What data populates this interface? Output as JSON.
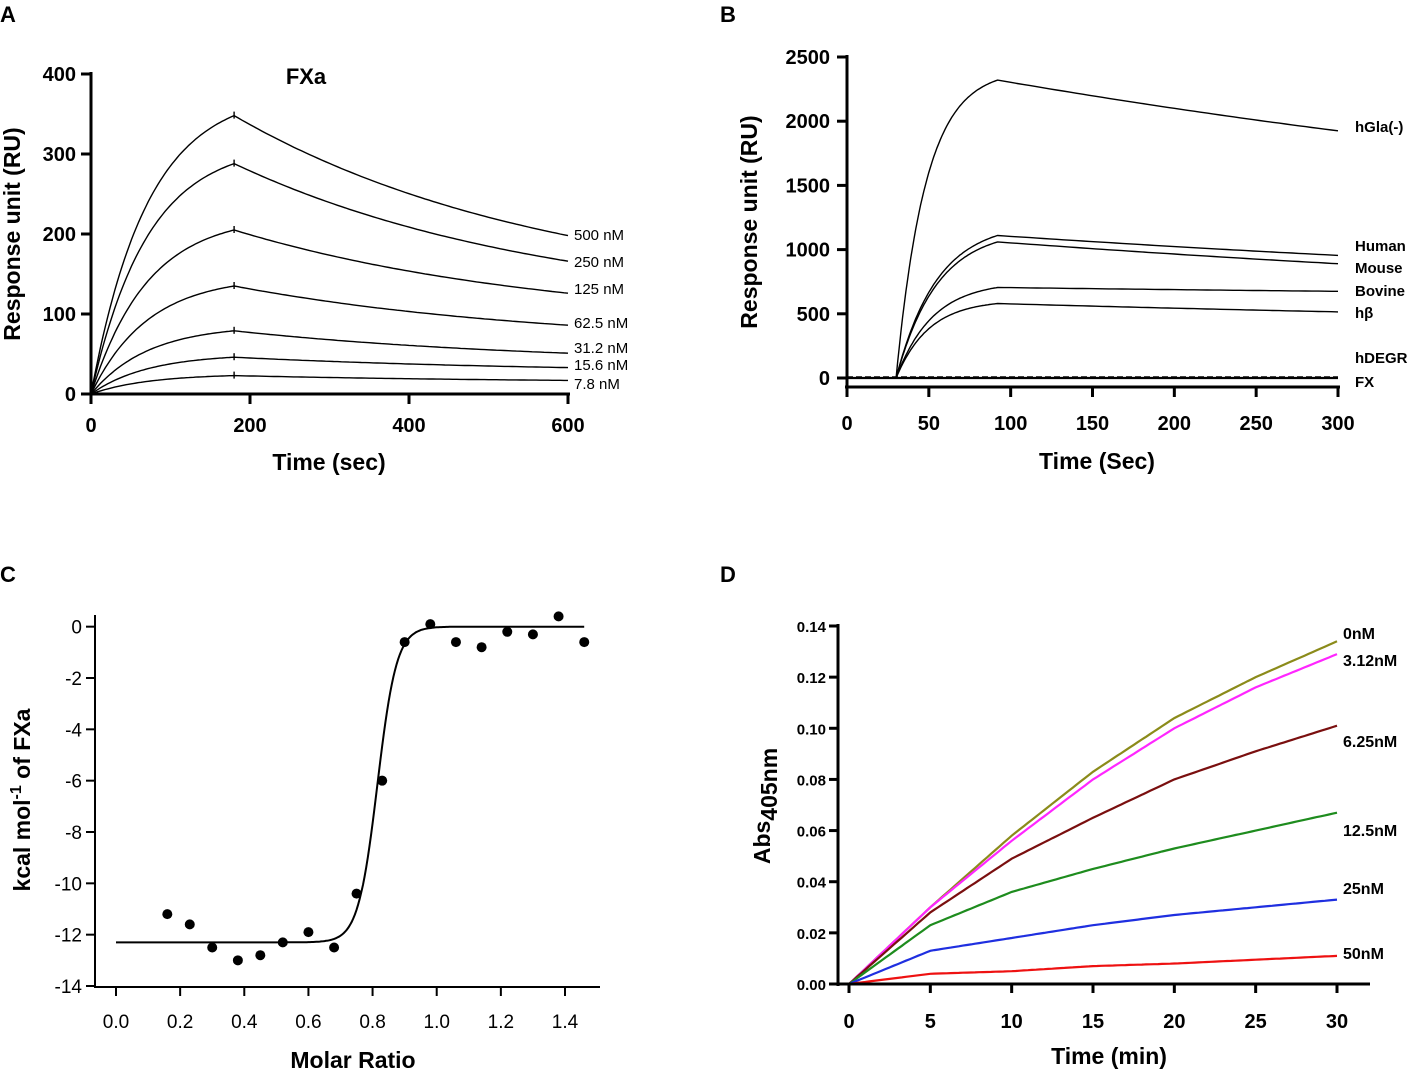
{
  "chart_data": [
    {
      "panel": "A",
      "type": "line",
      "title": "FXa",
      "xlabel": "Time (sec)",
      "ylabel": "Response unit (RU)",
      "xlim": [
        0,
        600
      ],
      "ylim": [
        0,
        400
      ],
      "xticks": [
        0,
        200,
        400,
        600
      ],
      "yticks": [
        0,
        100,
        200,
        300,
        400
      ],
      "association_end": 180,
      "series": [
        {
          "name": "500 nM",
          "peak": 348,
          "end": 198
        },
        {
          "name": "250 nM",
          "peak": 288,
          "end": 166
        },
        {
          "name": "125 nM",
          "peak": 205,
          "end": 126
        },
        {
          "name": "62.5 nM",
          "peak": 135,
          "end": 86
        },
        {
          "name": "31.2 nM",
          "peak": 79,
          "end": 51
        },
        {
          "name": "15.6 nM",
          "peak": 46,
          "end": 33
        },
        {
          "name": "7.8 nM",
          "peak": 23,
          "end": 17
        }
      ]
    },
    {
      "panel": "B",
      "type": "line",
      "title": "",
      "xlabel": "Time (Sec)",
      "ylabel": "Response unit (RU)",
      "xlim": [
        0,
        300
      ],
      "ylim": [
        0,
        2500
      ],
      "xticks": [
        0,
        50,
        100,
        150,
        200,
        250,
        300
      ],
      "yticks": [
        0,
        500,
        1000,
        1500,
        2000,
        2500
      ],
      "injection_start": 30,
      "association_end": 92,
      "series": [
        {
          "name": "hGla(-)",
          "peak": 2320,
          "end": 1925
        },
        {
          "name": "Human",
          "peak": 1110,
          "end": 955
        },
        {
          "name": "Mouse",
          "peak": 1060,
          "end": 890
        },
        {
          "name": "Bovine",
          "peak": 705,
          "end": 675
        },
        {
          "name": "hβ",
          "peak": 580,
          "end": 515
        },
        {
          "name": "hDEGR",
          "peak": 5,
          "end": 5
        },
        {
          "name": "FX",
          "peak": 0,
          "end": 0
        }
      ]
    },
    {
      "panel": "C",
      "type": "scatter",
      "title": "",
      "xlabel": "Molar Ratio",
      "ylabel_main": "kcal mol",
      "ylabel_sup": "-1",
      "ylabel_tail": " of FXa",
      "xlim": [
        0,
        1.5
      ],
      "ylim": [
        -14,
        1
      ],
      "xticks": [
        "0.0",
        "0.2",
        "0.4",
        "0.6",
        "0.8",
        "1.0",
        "1.2",
        "1.4"
      ],
      "yticks": [
        "0",
        "-2",
        "-4",
        "-6",
        "-8",
        "-10",
        "-12",
        "-14"
      ],
      "points": [
        [
          0.16,
          -11.2
        ],
        [
          0.23,
          -11.6
        ],
        [
          0.3,
          -12.5
        ],
        [
          0.38,
          -13.0
        ],
        [
          0.45,
          -12.8
        ],
        [
          0.52,
          -12.3
        ],
        [
          0.6,
          -11.9
        ],
        [
          0.68,
          -12.5
        ],
        [
          0.75,
          -10.4
        ],
        [
          0.83,
          -6.0
        ],
        [
          0.9,
          -0.6
        ],
        [
          0.98,
          0.1
        ],
        [
          1.06,
          -0.6
        ],
        [
          1.14,
          -0.8
        ],
        [
          1.22,
          -0.2
        ],
        [
          1.3,
          -0.3
        ],
        [
          1.38,
          0.4
        ],
        [
          1.46,
          -0.6
        ]
      ],
      "fit": {
        "low": -12.3,
        "high": 0,
        "midpoint": 0.815,
        "slope": 0.03
      }
    },
    {
      "panel": "D",
      "type": "line",
      "title": "",
      "xlabel": "Time (min)",
      "ylabel_main": "Abs",
      "ylabel_sub": "405nm",
      "xlim": [
        0,
        30
      ],
      "ylim": [
        0,
        0.14
      ],
      "xticks": [
        0,
        5,
        10,
        15,
        20,
        25,
        30
      ],
      "yticks": [
        "0.00",
        "0.02",
        "0.04",
        "0.06",
        "0.08",
        "0.10",
        "0.12",
        "0.14"
      ],
      "series": [
        {
          "name": "0nM",
          "color": "#8b8b1a",
          "values": [
            0,
            0.03,
            0.058,
            0.083,
            0.104,
            0.12,
            0.134
          ]
        },
        {
          "name": "3.12nM",
          "color": "#ff26ff",
          "values": [
            0,
            0.03,
            0.056,
            0.08,
            0.1,
            0.116,
            0.129
          ]
        },
        {
          "name": "6.25nM",
          "color": "#7a0f0f",
          "values": [
            0,
            0.028,
            0.049,
            0.065,
            0.08,
            0.091,
            0.101
          ]
        },
        {
          "name": "12.5nM",
          "color": "#1e8c1e",
          "values": [
            0,
            0.023,
            0.036,
            0.045,
            0.053,
            0.06,
            0.067
          ]
        },
        {
          "name": "25nM",
          "color": "#1f2fe0",
          "values": [
            0,
            0.013,
            0.018,
            0.023,
            0.027,
            0.03,
            0.033
          ]
        },
        {
          "name": "50nM",
          "color": "#ee1111",
          "values": [
            0,
            0.004,
            0.005,
            0.007,
            0.008,
            0.0095,
            0.011
          ]
        }
      ]
    }
  ]
}
